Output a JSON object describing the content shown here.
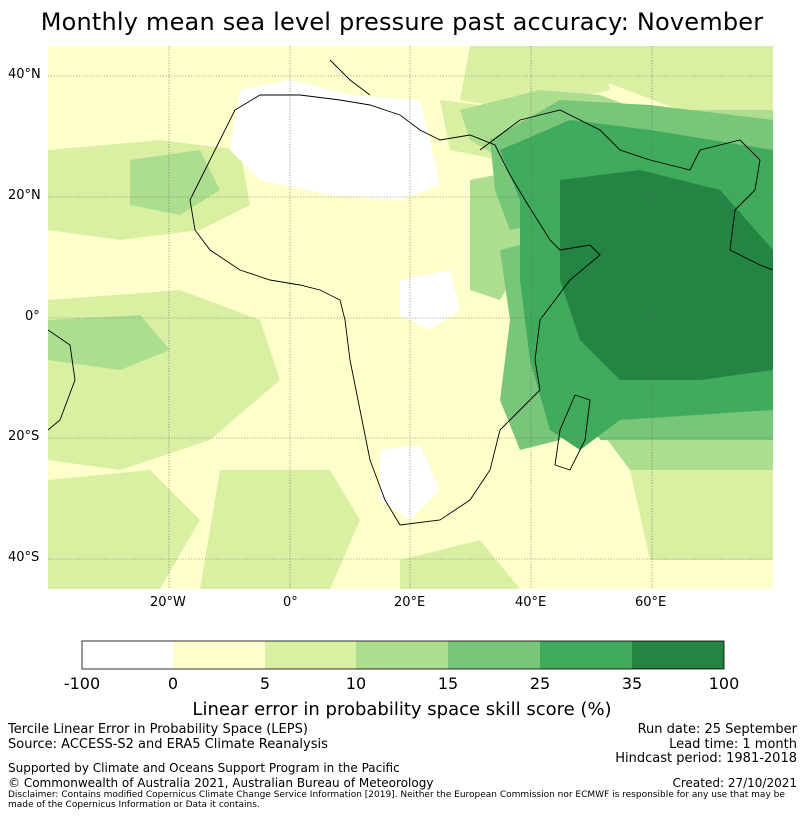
{
  "title": "Monthly mean sea level pressure past accuracy: November",
  "map": {
    "lat_labels": [
      "40°N",
      "20°N",
      "0°",
      "20°S",
      "40°S"
    ],
    "lon_labels": [
      "20°W",
      "0°",
      "20°E",
      "40°E",
      "60°E"
    ]
  },
  "colorbar": {
    "ticks": [
      "-100",
      "0",
      "5",
      "10",
      "15",
      "25",
      "35",
      "100"
    ],
    "colors": [
      "#ffffff",
      "#ffffcc",
      "#d9f0a3",
      "#addd8e",
      "#78c679",
      "#41ab5d",
      "#238443"
    ],
    "label": "Linear error in probability space skill score (%)"
  },
  "footer": {
    "left_line1": "Tercile Linear Error in Probability Space (LEPS)",
    "left_line2": "Source: ACCESS-S2 and ERA5 Climate Reanalysis",
    "support": "Supported by Climate and Oceans Support Program in the Pacific",
    "copyright": "© Commonwealth of Australia 2021, Australian Bureau of Meteorology",
    "run_date": "Run date: 25 September",
    "lead_time": "Lead time: 1 month",
    "hindcast": "Hindcast period: 1981-2018",
    "created": "Created: 27/10/2021",
    "disclaimer": "Disclaimer: Contains modified Copernicus Climate Change Service Information [2019]. Neither the European Commission nor ECMWF is responsible for any use that may be made of the Copernicus Information or Data it contains."
  }
}
